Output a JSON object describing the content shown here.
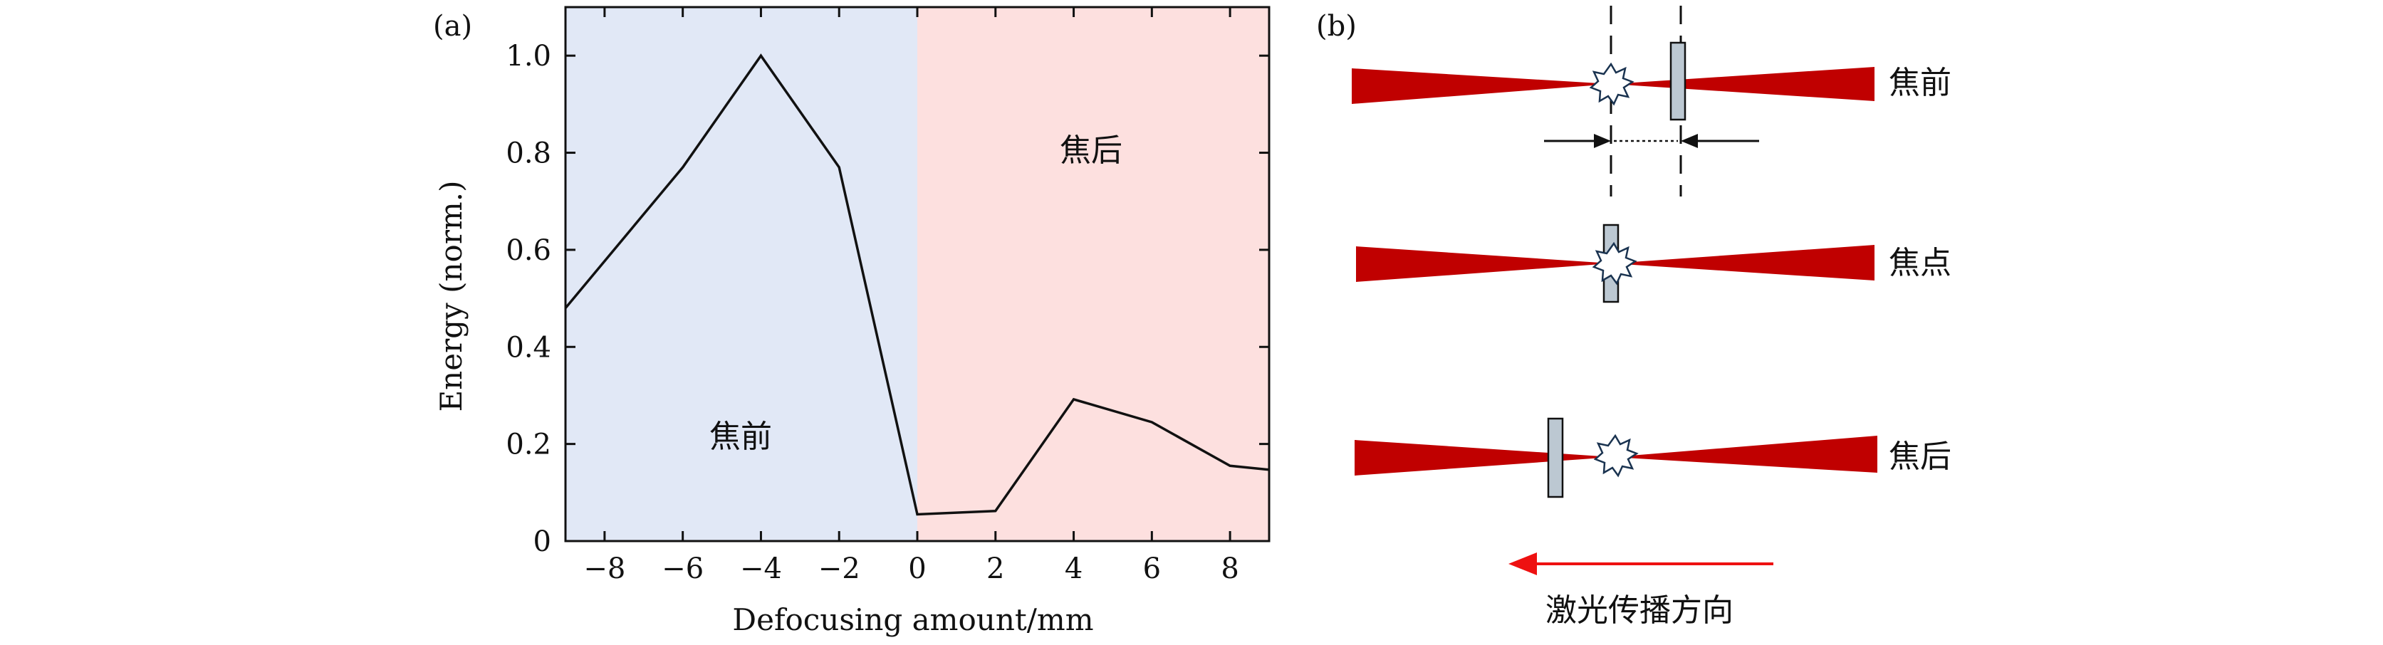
{
  "panel_a": {
    "label": "(a)",
    "region_before_label": "焦前",
    "region_after_label": "焦后",
    "colors": {
      "before_region": "#e1e8f6",
      "after_region": "#fde0df",
      "line": "#111111"
    },
    "chart_data": {
      "type": "line",
      "xlabel": "Defocusing amount/mm",
      "ylabel": "Energy (norm.)",
      "xlim": [
        -9,
        9
      ],
      "ylim": [
        0,
        1.1
      ],
      "xticks": [
        -8,
        -6,
        -4,
        -2,
        0,
        2,
        4,
        6,
        8
      ],
      "xtick_labels": [
        "−8",
        "−6",
        "−4",
        "−2",
        "0",
        "2",
        "4",
        "6",
        "8"
      ],
      "yticks": [
        0,
        0.2,
        0.4,
        0.6,
        0.8,
        1.0
      ],
      "ytick_labels": [
        "0",
        "0.2",
        "0.4",
        "0.6",
        "0.8",
        "1.0"
      ],
      "x": [
        -9,
        -6,
        -4,
        -2,
        0,
        2,
        4,
        6,
        8,
        9
      ],
      "y": [
        0.48,
        0.77,
        1.0,
        0.77,
        0.055,
        0.062,
        0.292,
        0.245,
        0.155,
        0.147
      ],
      "grid": false
    }
  },
  "panel_b": {
    "label": "(b)",
    "rows": [
      {
        "label": "焦前"
      },
      {
        "label": "焦点"
      },
      {
        "label": "焦后"
      }
    ],
    "direction_label": "激光传播方向",
    "colors": {
      "beam": "#c00000",
      "target": "#bcc8d2",
      "arrow": "#ee1111"
    }
  }
}
